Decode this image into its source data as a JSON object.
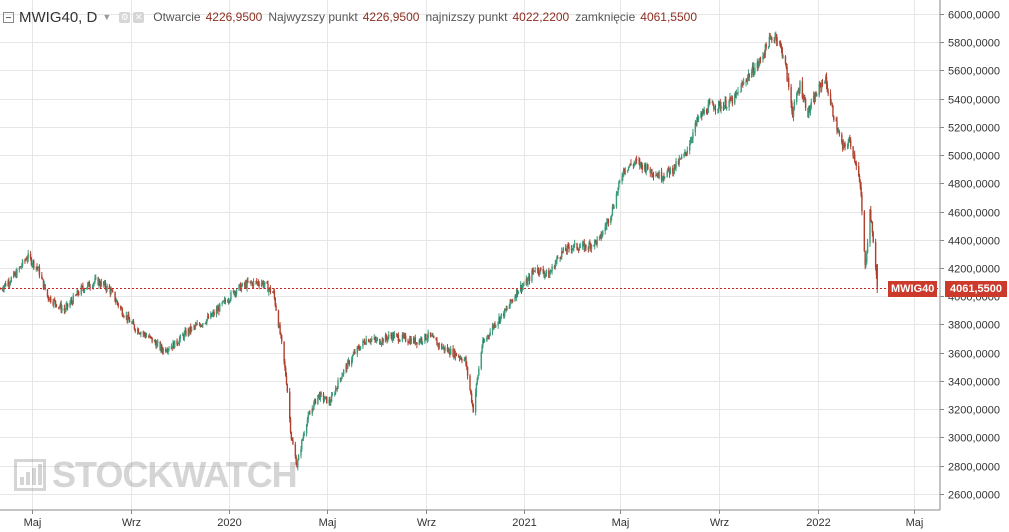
{
  "header": {
    "symbol": "MWIG40, D",
    "open_label": "Otwarcie",
    "open_value": "4226,9500",
    "high_label": "Najwyzszy punkt",
    "high_value": "4226,9500",
    "low_label": "najnizszy punkt",
    "low_value": "4022,2200",
    "close_label": "zamknięcie",
    "close_value": "4061,5500"
  },
  "last_price": {
    "label": "MWIG40",
    "value": "4061,5500"
  },
  "watermark": "STOCKWATCH",
  "colors": {
    "up": "#3a9a7a",
    "down": "#b0412f",
    "last_line": "#cc2222",
    "grid": "#e6e6e6"
  },
  "chart_data": {
    "type": "line",
    "title": "MWIG40, D",
    "grid": true,
    "ylim": [
      2500,
      6070
    ],
    "yticks": [
      2600,
      2800,
      3000,
      3200,
      3400,
      3600,
      3800,
      4000,
      4200,
      4400,
      4600,
      4800,
      5000,
      5200,
      5400,
      5600,
      5800,
      6000
    ],
    "ytick_labels": [
      "2600,0000",
      "2800,0000",
      "3000,0000",
      "3200,0000",
      "3400,0000",
      "3600,0000",
      "3800,0000",
      "4000,0000",
      "4200,0000",
      "4400,0000",
      "4600,0000",
      "4800,0000",
      "5000,0000",
      "5200,0000",
      "5400,0000",
      "5600,0000",
      "5800,0000",
      "6000,0000"
    ],
    "xlim": [
      "2019-03-22",
      "2022-06-02"
    ],
    "xticks": [
      {
        "date": "2019-05-01",
        "label": "Maj"
      },
      {
        "date": "2019-09-01",
        "label": "Wrz"
      },
      {
        "date": "2020-01-01",
        "label": "2020"
      },
      {
        "date": "2020-05-01",
        "label": "Maj"
      },
      {
        "date": "2020-09-01",
        "label": "Wrz"
      },
      {
        "date": "2021-01-01",
        "label": "2021"
      },
      {
        "date": "2021-05-01",
        "label": "Maj"
      },
      {
        "date": "2021-09-01",
        "label": "Wrz"
      },
      {
        "date": "2022-01-01",
        "label": "2022"
      },
      {
        "date": "2022-05-01",
        "label": "Maj"
      }
    ],
    "last_value": 4061.55,
    "series": [
      {
        "x": [
          "2019-03-22",
          "2019-04-10",
          "2019-04-25",
          "2019-05-08",
          "2019-05-20",
          "2019-06-10",
          "2019-07-01",
          "2019-07-20",
          "2019-08-05",
          "2019-08-20",
          "2019-09-05",
          "2019-09-25",
          "2019-10-10",
          "2019-10-25",
          "2019-11-10",
          "2019-11-25",
          "2019-12-10",
          "2019-12-25",
          "2020-01-10",
          "2020-01-25",
          "2020-02-10",
          "2020-02-25",
          "2020-03-05",
          "2020-03-12",
          "2020-03-18",
          "2020-03-25",
          "2020-04-05",
          "2020-04-20",
          "2020-05-05",
          "2020-05-20",
          "2020-06-05",
          "2020-06-20",
          "2020-07-05",
          "2020-07-20",
          "2020-08-05",
          "2020-08-20",
          "2020-09-05",
          "2020-09-20",
          "2020-10-05",
          "2020-10-20",
          "2020-10-30",
          "2020-11-10",
          "2020-11-25",
          "2020-12-10",
          "2020-12-25",
          "2021-01-05",
          "2021-01-15",
          "2021-02-01",
          "2021-02-15",
          "2021-03-01",
          "2021-03-20",
          "2021-04-05",
          "2021-04-20",
          "2021-05-05",
          "2021-05-20",
          "2021-06-05",
          "2021-06-20",
          "2021-07-05",
          "2021-07-20",
          "2021-08-05",
          "2021-08-20",
          "2021-09-05",
          "2021-09-20",
          "2021-10-05",
          "2021-10-20",
          "2021-11-01",
          "2021-11-10",
          "2021-11-20",
          "2021-12-01",
          "2021-12-10",
          "2021-12-20",
          "2022-01-01",
          "2022-01-10",
          "2022-01-20",
          "2022-02-01",
          "2022-02-10",
          "2022-02-20",
          "2022-02-24",
          "2022-03-01",
          "2022-03-07",
          "2022-03-12",
          "2022-03-16"
        ],
        "values": [
          4050,
          4150,
          4280,
          4200,
          4000,
          3900,
          4050,
          4110,
          4050,
          3900,
          3780,
          3700,
          3620,
          3660,
          3750,
          3800,
          3860,
          3950,
          4050,
          4090,
          4100,
          4020,
          3700,
          3400,
          3000,
          2800,
          3100,
          3300,
          3250,
          3450,
          3600,
          3700,
          3680,
          3720,
          3700,
          3680,
          3720,
          3640,
          3600,
          3550,
          3200,
          3650,
          3800,
          3900,
          4050,
          4100,
          4200,
          4150,
          4300,
          4350,
          4350,
          4400,
          4600,
          4900,
          4950,
          4900,
          4850,
          4900,
          5000,
          5250,
          5350,
          5350,
          5400,
          5550,
          5650,
          5800,
          5850,
          5700,
          5300,
          5500,
          5300,
          5450,
          5550,
          5300,
          5050,
          5100,
          4900,
          4700,
          4200,
          4600,
          4350,
          4060
        ]
      }
    ]
  }
}
